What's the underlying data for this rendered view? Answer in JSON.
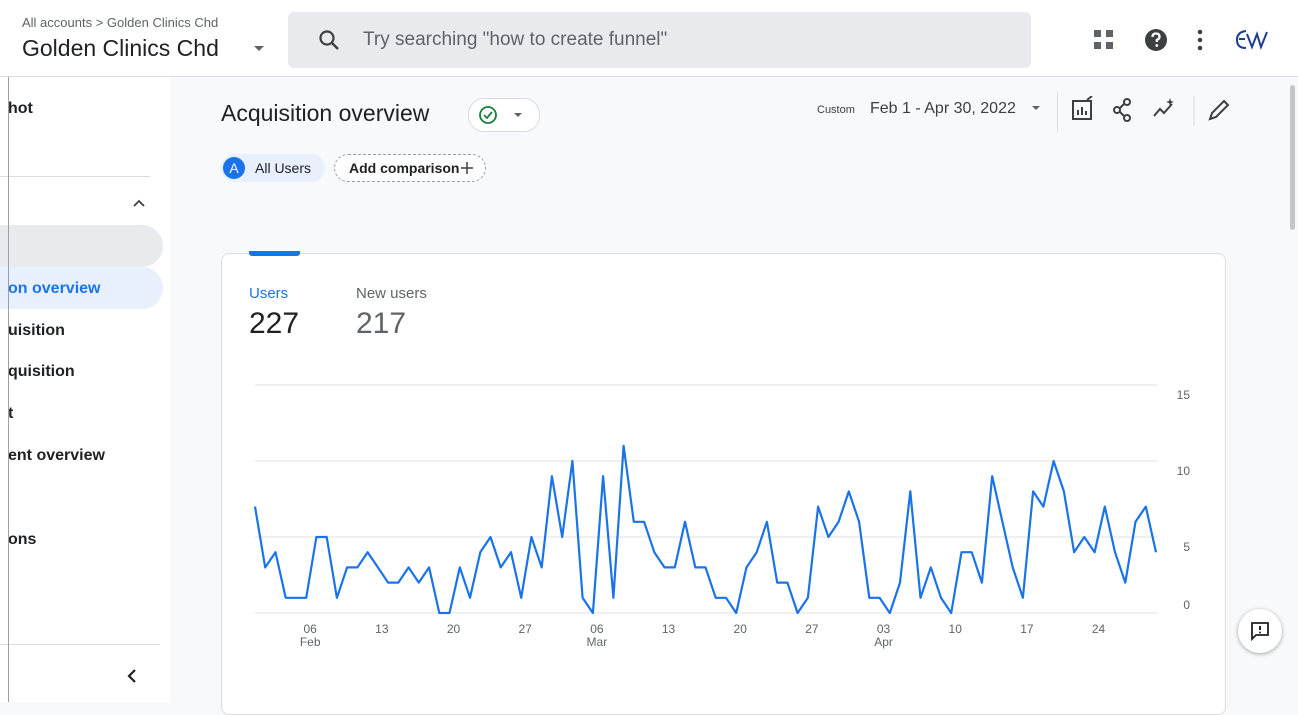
{
  "top_bar": {
    "breadcrumb": "All accounts > Golden Clinics Chd",
    "account": "Golden Clinics Chd",
    "search_placeholder": "Try searching \"how to create funnel\""
  },
  "sidebar": {
    "items": [
      "hot",
      "on overview",
      "uisition",
      "quisition",
      "t",
      "ent overview",
      "ons"
    ]
  },
  "header": {
    "title": "Acquisition overview",
    "date_prefix": "Custom",
    "date_range": "Feb 1 - Apr 30, 2022"
  },
  "comparison": {
    "badge": "A",
    "segment": "All Users",
    "add": "Add comparison"
  },
  "metrics": [
    {
      "label": "Users",
      "value": 227
    },
    {
      "label": "New users",
      "value": 217
    }
  ],
  "chart_data": {
    "type": "line",
    "color": "#1a73e8",
    "grid": true,
    "categories": [
      null,
      null,
      null,
      null,
      null,
      "06",
      null,
      null,
      null,
      null,
      null,
      null,
      "13",
      null,
      null,
      null,
      null,
      null,
      null,
      "20",
      null,
      null,
      null,
      null,
      null,
      null,
      "27",
      null,
      null,
      null,
      null,
      null,
      null,
      "06",
      null,
      null,
      null,
      null,
      null,
      null,
      "13",
      null,
      null,
      null,
      null,
      null,
      null,
      "20",
      null,
      null,
      null,
      null,
      null,
      null,
      "27",
      null,
      null,
      null,
      null,
      null,
      null,
      "03",
      null,
      null,
      null,
      null,
      null,
      null,
      "10",
      null,
      null,
      null,
      null,
      null,
      null,
      "17",
      null,
      null,
      null,
      null,
      null,
      null,
      "24",
      null,
      null,
      null,
      null,
      null,
      null
    ],
    "month_labels": [
      null,
      null,
      null,
      null,
      null,
      "Feb",
      null,
      null,
      null,
      null,
      null,
      null,
      null,
      null,
      null,
      null,
      null,
      null,
      null,
      null,
      null,
      null,
      null,
      null,
      null,
      null,
      null,
      null,
      null,
      null,
      null,
      null,
      null,
      "Mar",
      null,
      null,
      null,
      null,
      null,
      null,
      null,
      null,
      null,
      null,
      null,
      null,
      null,
      null,
      null,
      null,
      null,
      null,
      null,
      null,
      null,
      null,
      null,
      null,
      null,
      null,
      null,
      "Apr",
      null,
      null,
      null,
      null,
      null,
      null,
      null,
      null,
      null,
      null,
      null,
      null,
      null,
      null,
      null,
      null,
      null,
      null,
      null,
      null,
      null,
      null,
      null,
      null,
      null,
      null,
      null,
      null,
      null,
      null
    ],
    "values": [
      7,
      3,
      4,
      1,
      1,
      1,
      5,
      5,
      1,
      3,
      3,
      4,
      3,
      2,
      2,
      3,
      2,
      3,
      0,
      0,
      3,
      1,
      4,
      5,
      3,
      4,
      1,
      5,
      3,
      9,
      5,
      10,
      1,
      0,
      9,
      1,
      11,
      6,
      6,
      4,
      3,
      3,
      6,
      3,
      3,
      1,
      1,
      0,
      3,
      4,
      6,
      2,
      2,
      0,
      1,
      7,
      5,
      6,
      8,
      6,
      1,
      1,
      0,
      2,
      8,
      1,
      3,
      1,
      0,
      4,
      4,
      2,
      9,
      6,
      3,
      1,
      8,
      7,
      10,
      8,
      4,
      5,
      4,
      7,
      4,
      2,
      6,
      7,
      4
    ],
    "ylim": [
      0,
      15
    ],
    "yticks": [
      0,
      5,
      10,
      15
    ]
  }
}
